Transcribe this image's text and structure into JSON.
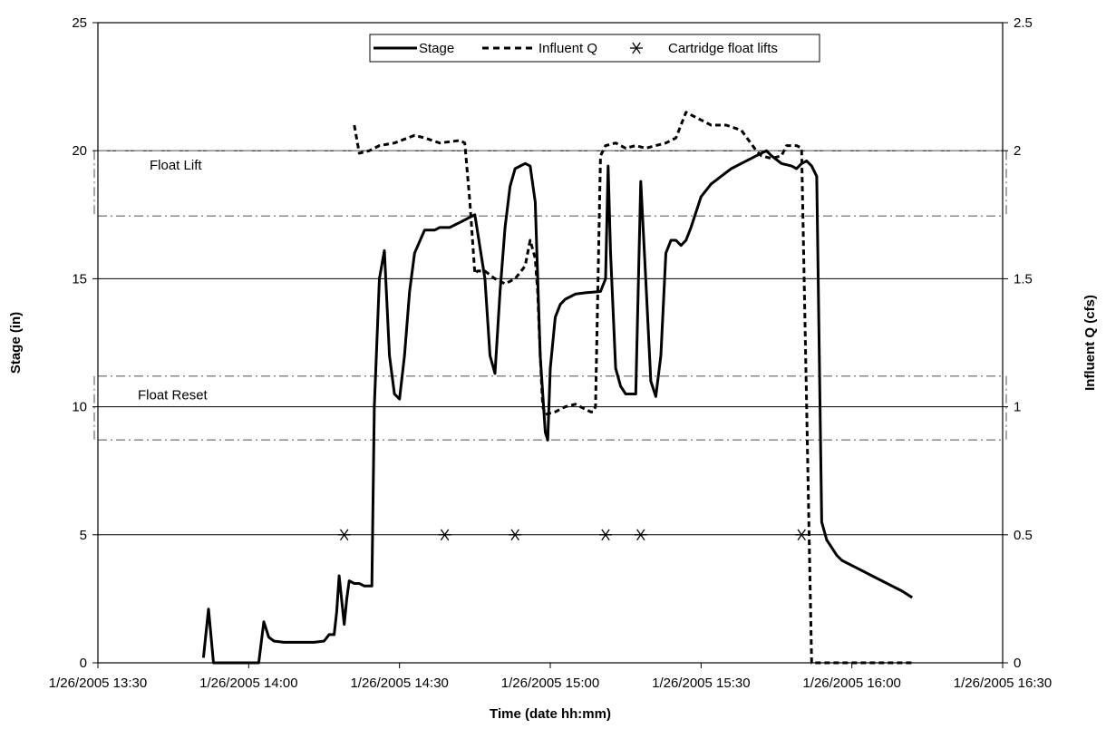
{
  "chart_data": {
    "type": "line",
    "title": "",
    "xlabel": "Time (date hh:mm)",
    "ylabel": "Stage (in)",
    "y2label": "Influent Q (cfs)",
    "ylim": [
      0,
      25
    ],
    "y2lim": [
      0,
      2.5
    ],
    "yticks": [
      "0",
      "5",
      "10",
      "15",
      "20",
      "25"
    ],
    "y2ticks": [
      "0",
      "0.5",
      "1",
      "1.5",
      "2",
      "2.5"
    ],
    "xlim": [
      "13:30",
      "16:30"
    ],
    "xticks": [
      "1/26/2005 13:30",
      "1/26/2005 14:00",
      "1/26/2005 14:30",
      "1/26/2005 15:00",
      "1/26/2005 15:30",
      "1/26/2005 16:00",
      "1/26/2005 16:30"
    ],
    "grid": "horizontal",
    "legend": {
      "placement": "top-center",
      "entries": [
        "Stage",
        "Influent Q",
        "Cartridge float lifts"
      ]
    },
    "annotations": [
      "Float Lift",
      "Float Reset"
    ],
    "reference_lines": {
      "float_lift_band_in": [
        17.45,
        20.0
      ],
      "float_reset_band_in": [
        8.7,
        11.2
      ]
    },
    "series": [
      {
        "name": "Stage",
        "axis": "left",
        "style": "solid",
        "x": [
          "13:51",
          "13:52",
          "13:53",
          "13:54",
          "13:55",
          "13:56",
          "13:57",
          "13:58",
          "13:59",
          "14:00",
          "14:01",
          "14:02",
          "14:03",
          "14:04",
          "14:05",
          "14:07",
          "14:10",
          "14:13",
          "14:15",
          "14:16",
          "14:17",
          "14:17.5",
          "14:18",
          "14:19",
          "14:19.5",
          "14:20",
          "14:21",
          "14:22",
          "14:23",
          "14:24",
          "14:24.5",
          "14:25",
          "14:26",
          "14:27",
          "14:28",
          "14:29",
          "14:30",
          "14:31",
          "14:32",
          "14:33",
          "14:35",
          "14:37",
          "14:38",
          "14:40",
          "14:42",
          "14:45",
          "14:47",
          "14:48",
          "14:49",
          "14:50",
          "14:51",
          "14:52",
          "14:53",
          "14:55",
          "14:56",
          "14:57",
          "14:58",
          "14:59",
          "14:59.5",
          "15:00",
          "15:01",
          "15:02",
          "15:03",
          "15:05",
          "15:07",
          "15:10",
          "15:11",
          "15:11.5",
          "15:12",
          "15:13",
          "15:14",
          "15:15",
          "15:17",
          "15:18",
          "15:19",
          "15:20",
          "15:21",
          "15:22",
          "15:23",
          "15:24",
          "15:25",
          "15:26",
          "15:27",
          "15:28",
          "15:30",
          "15:32",
          "15:34",
          "15:36",
          "15:38",
          "15:41",
          "15:43",
          "15:44",
          "15:46",
          "15:48",
          "15:49",
          "15:50",
          "15:51",
          "15:52",
          "15:53",
          "15:54",
          "15:55",
          "15:56",
          "15:57",
          "15:58",
          "16:00",
          "16:02",
          "16:04",
          "16:06",
          "16:08",
          "16:10",
          "16:12"
        ],
        "values": [
          0.2,
          2.1,
          0,
          0,
          0,
          0,
          0,
          0,
          0,
          0,
          0,
          0,
          1.6,
          1.0,
          0.85,
          0.8,
          0.8,
          0.8,
          0.85,
          1.1,
          1.1,
          2.0,
          3.4,
          1.5,
          2.5,
          3.2,
          3.1,
          3.1,
          3.0,
          3.0,
          3.0,
          10.0,
          15.0,
          16.1,
          12.0,
          10.5,
          10.3,
          12.0,
          14.5,
          16.0,
          16.9,
          16.9,
          17.0,
          17.0,
          17.2,
          17.5,
          15.0,
          12.0,
          11.3,
          14.5,
          17.0,
          18.6,
          19.3,
          19.5,
          19.4,
          18.0,
          12.0,
          9.0,
          8.7,
          11.5,
          13.5,
          14.0,
          14.2,
          14.4,
          14.45,
          14.5,
          15.0,
          19.4,
          16.0,
          11.5,
          10.8,
          10.5,
          10.5,
          18.8,
          15.0,
          11.0,
          10.4,
          12.0,
          16.0,
          16.5,
          16.5,
          16.3,
          16.5,
          17.0,
          18.2,
          18.7,
          19.0,
          19.3,
          19.5,
          19.8,
          20.0,
          19.8,
          19.5,
          19.4,
          19.3,
          19.5,
          19.6,
          19.4,
          19.0,
          5.5,
          4.8,
          4.5,
          4.2,
          4.0,
          3.8,
          3.6,
          3.4,
          3.2,
          3.0,
          2.8,
          2.55
        ]
      },
      {
        "name": "Influent Q",
        "axis": "right",
        "style": "dashed",
        "x": [
          "14:21",
          "14:22",
          "14:24",
          "14:26",
          "14:29",
          "14:33",
          "14:35",
          "14:38",
          "14:42",
          "14:43",
          "14:44",
          "14:45",
          "14:45.5",
          "14:47",
          "14:49",
          "14:51",
          "14:53",
          "14:55",
          "14:56",
          "14:57",
          "14:57.5",
          "14:58",
          "14:58.5",
          "14:59",
          "15:01",
          "15:03",
          "15:05",
          "15:08",
          "15:08.5",
          "15:09",
          "15:09.5",
          "15:10",
          "15:11",
          "15:13",
          "15:15",
          "15:17",
          "15:19",
          "15:21",
          "15:23",
          "15:25",
          "15:27",
          "15:28",
          "15:30",
          "15:32",
          "15:35",
          "15:38",
          "15:41",
          "15:42",
          "15:44",
          "15:46",
          "15:47",
          "15:49",
          "15:50",
          "15:51",
          "15:51.5",
          "15:52",
          "15:53",
          "15:54",
          "15:56",
          "16:00",
          "16:05",
          "16:10",
          "16:12"
        ],
        "values": [
          2.1,
          1.99,
          2.0,
          2.02,
          2.03,
          2.06,
          2.05,
          2.03,
          2.04,
          2.03,
          1.8,
          1.52,
          1.53,
          1.53,
          1.5,
          1.48,
          1.5,
          1.55,
          1.65,
          1.58,
          1.45,
          1.2,
          1.0,
          0.97,
          0.98,
          1.0,
          1.01,
          0.98,
          0.98,
          1.0,
          1.5,
          1.98,
          2.02,
          2.03,
          2.01,
          2.02,
          2.01,
          2.02,
          2.03,
          2.05,
          2.15,
          2.14,
          2.12,
          2.1,
          2.1,
          2.08,
          2.0,
          1.98,
          1.97,
          1.98,
          2.02,
          2.02,
          2.01,
          1.0,
          0.5,
          0,
          0,
          0,
          0,
          0,
          0,
          0,
          0
        ]
      },
      {
        "name": "Cartridge float lifts",
        "axis": "left",
        "style": "marker",
        "x": [
          "14:19",
          "14:39",
          "14:53",
          "15:11",
          "15:18",
          "15:50"
        ],
        "values": [
          5,
          5,
          5,
          5,
          5,
          5
        ]
      }
    ]
  }
}
